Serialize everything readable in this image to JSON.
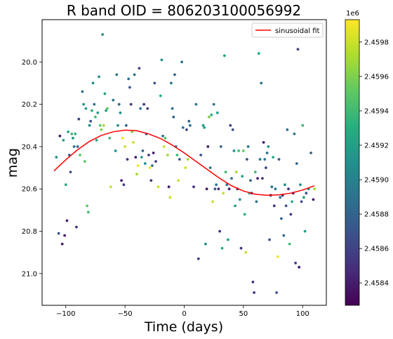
{
  "chart_data": {
    "type": "scatter",
    "title": "R band  OID = 806203100056992",
    "xlabel": "Time (days)",
    "ylabel": "mag",
    "xlim": [
      -120,
      120
    ],
    "ylim": [
      21.15,
      19.8
    ],
    "y_inverted": true,
    "x_ticks": [
      -100,
      -50,
      0,
      50,
      100
    ],
    "x_tick_labels": [
      "−100",
      "−50",
      "0",
      "50",
      "100"
    ],
    "y_ticks": [
      20.0,
      20.2,
      20.4,
      20.6,
      20.8,
      21.0
    ],
    "y_tick_labels": [
      "20.0",
      "20.2",
      "20.4",
      "20.6",
      "20.8",
      "21.0"
    ],
    "grid": false,
    "legend": {
      "position": "top-right",
      "entries": [
        "sinusoidal fit"
      ]
    },
    "fit_color": "#ff0000",
    "fit": {
      "name": "sinusoidal fit",
      "x": [
        -110,
        -100,
        -90,
        -80,
        -70,
        -60,
        -50,
        -40,
        -30,
        -20,
        -10,
        0,
        10,
        20,
        30,
        40,
        50,
        60,
        70,
        80,
        90,
        100,
        110
      ],
      "y": [
        20.515,
        20.462,
        20.415,
        20.375,
        20.347,
        20.33,
        20.322,
        20.325,
        20.34,
        20.362,
        20.393,
        20.43,
        20.47,
        20.51,
        20.55,
        20.585,
        20.61,
        20.625,
        20.63,
        20.628,
        20.62,
        20.605,
        20.585
      ]
    },
    "colorbar": {
      "min": 2.45827,
      "max": 2.45993,
      "ticks": [
        2.4584,
        2.4586,
        2.4588,
        2.459,
        2.4592,
        2.4594,
        2.4596,
        2.4598
      ],
      "tick_labels": [
        "2.4584",
        "2.4586",
        "2.4588",
        "2.4590",
        "2.4592",
        "2.4594",
        "2.4596",
        "2.4598"
      ],
      "offset_label": "1e6",
      "colormap": "viridis"
    },
    "points": [
      {
        "x": -108,
        "y": 20.45,
        "c": 2.4591
      },
      {
        "x": -106,
        "y": 20.81,
        "c": 2.4587
      },
      {
        "x": -105,
        "y": 20.35,
        "c": 2.4584
      },
      {
        "x": -103,
        "y": 20.86,
        "c": 2.4584
      },
      {
        "x": -102,
        "y": 20.37,
        "c": 2.4592
      },
      {
        "x": -101,
        "y": 20.82,
        "c": 2.4584
      },
      {
        "x": -100,
        "y": 20.58,
        "c": 2.4593
      },
      {
        "x": -99,
        "y": 20.75,
        "c": 2.4584
      },
      {
        "x": -98,
        "y": 20.33,
        "c": 2.4592
      },
      {
        "x": -97,
        "y": 20.44,
        "c": 2.4588
      },
      {
        "x": -96,
        "y": 20.52,
        "c": 2.4587
      },
      {
        "x": -95,
        "y": 20.34,
        "c": 2.4594
      },
      {
        "x": -94,
        "y": 20.36,
        "c": 2.4591
      },
      {
        "x": -93,
        "y": 20.4,
        "c": 2.4589
      },
      {
        "x": -92,
        "y": 20.34,
        "c": 2.4593
      },
      {
        "x": -91,
        "y": 20.78,
        "c": 2.4585
      },
      {
        "x": -90,
        "y": 20.4,
        "c": 2.4588
      },
      {
        "x": -89,
        "y": 20.27,
        "c": 2.4586
      },
      {
        "x": -88,
        "y": 20.44,
        "c": 2.4595
      },
      {
        "x": -86,
        "y": 20.14,
        "c": 2.4589
      },
      {
        "x": -85,
        "y": 20.2,
        "c": 2.4591
      },
      {
        "x": -84,
        "y": 20.47,
        "c": 2.4595
      },
      {
        "x": -83,
        "y": 20.22,
        "c": 2.4592
      },
      {
        "x": -82,
        "y": 20.68,
        "c": 2.4595
      },
      {
        "x": -81,
        "y": 20.71,
        "c": 2.4594
      },
      {
        "x": -80,
        "y": 20.3,
        "c": 2.4591
      },
      {
        "x": -79,
        "y": 20.28,
        "c": 2.4587
      },
      {
        "x": -78,
        "y": 20.23,
        "c": 2.4593
      },
      {
        "x": -77,
        "y": 20.1,
        "c": 2.4591
      },
      {
        "x": -76,
        "y": 20.2,
        "c": 2.4589
      },
      {
        "x": -75,
        "y": 20.26,
        "c": 2.4594
      },
      {
        "x": -74,
        "y": 20.37,
        "c": 2.4593
      },
      {
        "x": -73,
        "y": 20.24,
        "c": 2.4592
      },
      {
        "x": -72,
        "y": 20.07,
        "c": 2.4591
      },
      {
        "x": -71,
        "y": 20.3,
        "c": 2.4595
      },
      {
        "x": -70,
        "y": 20.32,
        "c": 2.4596
      },
      {
        "x": -69,
        "y": 19.87,
        "c": 2.4591
      },
      {
        "x": -68,
        "y": 20.3,
        "c": 2.4597
      },
      {
        "x": -67,
        "y": 20.15,
        "c": 2.4592
      },
      {
        "x": -66,
        "y": 20.23,
        "c": 2.4592
      },
      {
        "x": -65,
        "y": 20.22,
        "c": 2.4595
      },
      {
        "x": -63,
        "y": 20.36,
        "c": 2.4594
      },
      {
        "x": -62,
        "y": 20.59,
        "c": 2.4598
      },
      {
        "x": -60,
        "y": 20.18,
        "c": 2.4589
      },
      {
        "x": -58,
        "y": 20.42,
        "c": 2.4591
      },
      {
        "x": -57,
        "y": 20.06,
        "c": 2.4589
      },
      {
        "x": -56,
        "y": 20.3,
        "c": 2.4591
      },
      {
        "x": -55,
        "y": 20.2,
        "c": 2.4588
      },
      {
        "x": -54,
        "y": 20.24,
        "c": 2.4591
      },
      {
        "x": -53,
        "y": 20.56,
        "c": 2.4584
      },
      {
        "x": -52,
        "y": 20.36,
        "c": 2.4599
      },
      {
        "x": -51,
        "y": 20.58,
        "c": 2.4586
      },
      {
        "x": -50,
        "y": 20.4,
        "c": 2.4598
      },
      {
        "x": -49,
        "y": 20.3,
        "c": 2.4588
      },
      {
        "x": -48,
        "y": 20.46,
        "c": 2.4585
      },
      {
        "x": -47,
        "y": 20.08,
        "c": 2.4589
      },
      {
        "x": -46,
        "y": 20.12,
        "c": 2.4587
      },
      {
        "x": -45,
        "y": 20.2,
        "c": 2.4585
      },
      {
        "x": -44,
        "y": 20.33,
        "c": 2.4596
      },
      {
        "x": -43,
        "y": 20.38,
        "c": 2.4598
      },
      {
        "x": -42,
        "y": 20.06,
        "c": 2.4589
      },
      {
        "x": -41,
        "y": 20.45,
        "c": 2.4584
      },
      {
        "x": -40,
        "y": 20.53,
        "c": 2.4597
      },
      {
        "x": -39,
        "y": 20.49,
        "c": 2.4599
      },
      {
        "x": -38,
        "y": 20.03,
        "c": 2.4586
      },
      {
        "x": -37,
        "y": 20.22,
        "c": 2.4589
      },
      {
        "x": -36,
        "y": 20.45,
        "c": 2.4592
      },
      {
        "x": -35,
        "y": 20.42,
        "c": 2.4588
      },
      {
        "x": -34,
        "y": 20.2,
        "c": 2.4585
      },
      {
        "x": -33,
        "y": 20.48,
        "c": 2.4591
      },
      {
        "x": -32,
        "y": 20.34,
        "c": 2.4587
      },
      {
        "x": -31,
        "y": 20.22,
        "c": 2.4586
      },
      {
        "x": -30,
        "y": 20.44,
        "c": 2.4586
      },
      {
        "x": -29,
        "y": 20.5,
        "c": 2.4599
      },
      {
        "x": -28,
        "y": 20.56,
        "c": 2.4585
      },
      {
        "x": -27,
        "y": 20.49,
        "c": 2.4589
      },
      {
        "x": -26,
        "y": 20.43,
        "c": 2.4584
      },
      {
        "x": -25,
        "y": 20.1,
        "c": 2.4587
      },
      {
        "x": -24,
        "y": 20.47,
        "c": 2.4586
      },
      {
        "x": -22,
        "y": 20.59,
        "c": 2.4598
      },
      {
        "x": -20,
        "y": 20.16,
        "c": 2.4593
      },
      {
        "x": -19,
        "y": 19.99,
        "c": 2.4591
      },
      {
        "x": -18,
        "y": 20.35,
        "c": 2.4589
      },
      {
        "x": -17,
        "y": 20.4,
        "c": 2.4598
      },
      {
        "x": -16,
        "y": 20.36,
        "c": 2.4595
      },
      {
        "x": -14,
        "y": 20.44,
        "c": 2.4597
      },
      {
        "x": -13,
        "y": 20.59,
        "c": 2.4584
      },
      {
        "x": -12,
        "y": 20.64,
        "c": 2.4598
      },
      {
        "x": -11,
        "y": 20.1,
        "c": 2.4589
      },
      {
        "x": -10,
        "y": 20.22,
        "c": 2.4589
      },
      {
        "x": -9,
        "y": 20.26,
        "c": 2.4588
      },
      {
        "x": -8,
        "y": 20.06,
        "c": 2.4588
      },
      {
        "x": -7,
        "y": 20.4,
        "c": 2.4589
      },
      {
        "x": -6,
        "y": 20.44,
        "c": 2.4594
      },
      {
        "x": -5,
        "y": 20.56,
        "c": 2.4598
      },
      {
        "x": -4,
        "y": 20.46,
        "c": 2.4587
      },
      {
        "x": -2,
        "y": 20.0,
        "c": 2.4589
      },
      {
        "x": -1,
        "y": 20.31,
        "c": 2.4589
      },
      {
        "x": 1,
        "y": 20.5,
        "c": 2.4598
      },
      {
        "x": 2,
        "y": 20.32,
        "c": 2.4586
      },
      {
        "x": 3,
        "y": 20.46,
        "c": 2.4597
      },
      {
        "x": 4,
        "y": 20.28,
        "c": 2.4588
      },
      {
        "x": 5,
        "y": 20.3,
        "c": 2.4589
      },
      {
        "x": 8,
        "y": 20.59,
        "c": 2.4585
      },
      {
        "x": 10,
        "y": 20.2,
        "c": 2.4589
      },
      {
        "x": 12,
        "y": 20.93,
        "c": 2.4586
      },
      {
        "x": 14,
        "y": 20.44,
        "c": 2.4587
      },
      {
        "x": 16,
        "y": 20.3,
        "c": 2.4592
      },
      {
        "x": 17,
        "y": 20.31,
        "c": 2.4592
      },
      {
        "x": 18,
        "y": 20.86,
        "c": 2.4591
      },
      {
        "x": 19,
        "y": 20.6,
        "c": 2.4584
      },
      {
        "x": 20,
        "y": 20.4,
        "c": 2.4584
      },
      {
        "x": 21,
        "y": 20.26,
        "c": 2.4596
      },
      {
        "x": 22,
        "y": 20.5,
        "c": 2.4589
      },
      {
        "x": 23,
        "y": 20.25,
        "c": 2.4593
      },
      {
        "x": 24,
        "y": 20.66,
        "c": 2.4598
      },
      {
        "x": 25,
        "y": 20.2,
        "c": 2.4589
      },
      {
        "x": 26,
        "y": 20.6,
        "c": 2.4587
      },
      {
        "x": 27,
        "y": 20.58,
        "c": 2.4589
      },
      {
        "x": 28,
        "y": 20.24,
        "c": 2.4592
      },
      {
        "x": 29,
        "y": 20.6,
        "c": 2.4585
      },
      {
        "x": 30,
        "y": 20.8,
        "c": 2.4585
      },
      {
        "x": 31,
        "y": 20.4,
        "c": 2.4588
      },
      {
        "x": 32,
        "y": 20.88,
        "c": 2.4593
      },
      {
        "x": 33,
        "y": 20.62,
        "c": 2.4598
      },
      {
        "x": 34,
        "y": 19.97,
        "c": 2.4592
      },
      {
        "x": 35,
        "y": 20.52,
        "c": 2.4594
      },
      {
        "x": 36,
        "y": 20.58,
        "c": 2.4589
      },
      {
        "x": 37,
        "y": 20.84,
        "c": 2.4592
      },
      {
        "x": 38,
        "y": 20.6,
        "c": 2.4584
      },
      {
        "x": 39,
        "y": 20.3,
        "c": 2.4586
      },
      {
        "x": 40,
        "y": 20.55,
        "c": 2.4589
      },
      {
        "x": 41,
        "y": 20.32,
        "c": 2.4587
      },
      {
        "x": 42,
        "y": 20.42,
        "c": 2.4591
      },
      {
        "x": 43,
        "y": 20.68,
        "c": 2.4592
      },
      {
        "x": 44,
        "y": 20.52,
        "c": 2.4597
      },
      {
        "x": 45,
        "y": 20.6,
        "c": 2.4585
      },
      {
        "x": 46,
        "y": 20.42,
        "c": 2.4594
      },
      {
        "x": 47,
        "y": 20.65,
        "c": 2.4591
      },
      {
        "x": 48,
        "y": 20.88,
        "c": 2.4585
      },
      {
        "x": 49,
        "y": 20.54,
        "c": 2.4592
      },
      {
        "x": 50,
        "y": 20.42,
        "c": 2.4595
      },
      {
        "x": 51,
        "y": 20.72,
        "c": 2.4593
      },
      {
        "x": 52,
        "y": 20.9,
        "c": 2.4598
      },
      {
        "x": 53,
        "y": 20.46,
        "c": 2.4587
      },
      {
        "x": 54,
        "y": 20.4,
        "c": 2.4589
      },
      {
        "x": 55,
        "y": 20.62,
        "c": 2.4593
      },
      {
        "x": 56,
        "y": 20.56,
        "c": 2.4588
      },
      {
        "x": 57,
        "y": 20.62,
        "c": 2.4585
      },
      {
        "x": 58,
        "y": 21.04,
        "c": 2.4585
      },
      {
        "x": 59,
        "y": 21.09,
        "c": 2.4585
      },
      {
        "x": 60,
        "y": 20.52,
        "c": 2.4594
      },
      {
        "x": 61,
        "y": 20.66,
        "c": 2.4589
      },
      {
        "x": 62,
        "y": 20.55,
        "c": 2.4584
      },
      {
        "x": 63,
        "y": 19.96,
        "c": 2.4593
      },
      {
        "x": 64,
        "y": 20.46,
        "c": 2.4589
      },
      {
        "x": 65,
        "y": 20.1,
        "c": 2.4589
      },
      {
        "x": 66,
        "y": 20.55,
        "c": 2.4585
      },
      {
        "x": 67,
        "y": 20.38,
        "c": 2.4584
      },
      {
        "x": 68,
        "y": 20.46,
        "c": 2.4589
      },
      {
        "x": 69,
        "y": 20.5,
        "c": 2.4586
      },
      {
        "x": 70,
        "y": 20.43,
        "c": 2.4589
      },
      {
        "x": 71,
        "y": 20.4,
        "c": 2.4591
      },
      {
        "x": 72,
        "y": 20.84,
        "c": 2.4587
      },
      {
        "x": 73,
        "y": 20.63,
        "c": 2.4584
      },
      {
        "x": 74,
        "y": 20.59,
        "c": 2.4589
      },
      {
        "x": 75,
        "y": 20.45,
        "c": 2.4593
      },
      {
        "x": 76,
        "y": 20.68,
        "c": 2.4585
      },
      {
        "x": 77,
        "y": 20.6,
        "c": 2.4589
      },
      {
        "x": 78,
        "y": 21.09,
        "c": 2.4587
      },
      {
        "x": 79,
        "y": 20.92,
        "c": 2.4599
      },
      {
        "x": 80,
        "y": 20.46,
        "c": 2.4587
      },
      {
        "x": 81,
        "y": 20.64,
        "c": 2.4589
      },
      {
        "x": 82,
        "y": 20.74,
        "c": 2.4588
      },
      {
        "x": 83,
        "y": 20.63,
        "c": 2.4584
      },
      {
        "x": 84,
        "y": 20.82,
        "c": 2.4588
      },
      {
        "x": 85,
        "y": 20.58,
        "c": 2.4591
      },
      {
        "x": 86,
        "y": 20.68,
        "c": 2.4587
      },
      {
        "x": 87,
        "y": 20.32,
        "c": 2.4589
      },
      {
        "x": 88,
        "y": 20.6,
        "c": 2.4585
      },
      {
        "x": 89,
        "y": 20.86,
        "c": 2.4594
      },
      {
        "x": 90,
        "y": 20.72,
        "c": 2.4585
      },
      {
        "x": 91,
        "y": 20.66,
        "c": 2.4593
      },
      {
        "x": 92,
        "y": 20.62,
        "c": 2.4584
      },
      {
        "x": 93,
        "y": 20.34,
        "c": 2.4589
      },
      {
        "x": 94,
        "y": 20.95,
        "c": 2.4586
      },
      {
        "x": 95,
        "y": 20.48,
        "c": 2.4588
      },
      {
        "x": 96,
        "y": 19.94,
        "c": 2.4586
      },
      {
        "x": 97,
        "y": 20.97,
        "c": 2.4584
      },
      {
        "x": 98,
        "y": 20.58,
        "c": 2.4591
      },
      {
        "x": 99,
        "y": 20.66,
        "c": 2.4587
      },
      {
        "x": 100,
        "y": 20.3,
        "c": 2.4594
      },
      {
        "x": 101,
        "y": 20.64,
        "c": 2.4592
      },
      {
        "x": 102,
        "y": 20.8,
        "c": 2.4592
      },
      {
        "x": 103,
        "y": 20.62,
        "c": 2.4587
      },
      {
        "x": 105,
        "y": 20.6,
        "c": 2.4591
      },
      {
        "x": 107,
        "y": 20.43,
        "c": 2.4588
      },
      {
        "x": 109,
        "y": 20.65,
        "c": 2.4584
      },
      {
        "x": 110,
        "y": 20.6,
        "c": 2.4597
      }
    ]
  }
}
